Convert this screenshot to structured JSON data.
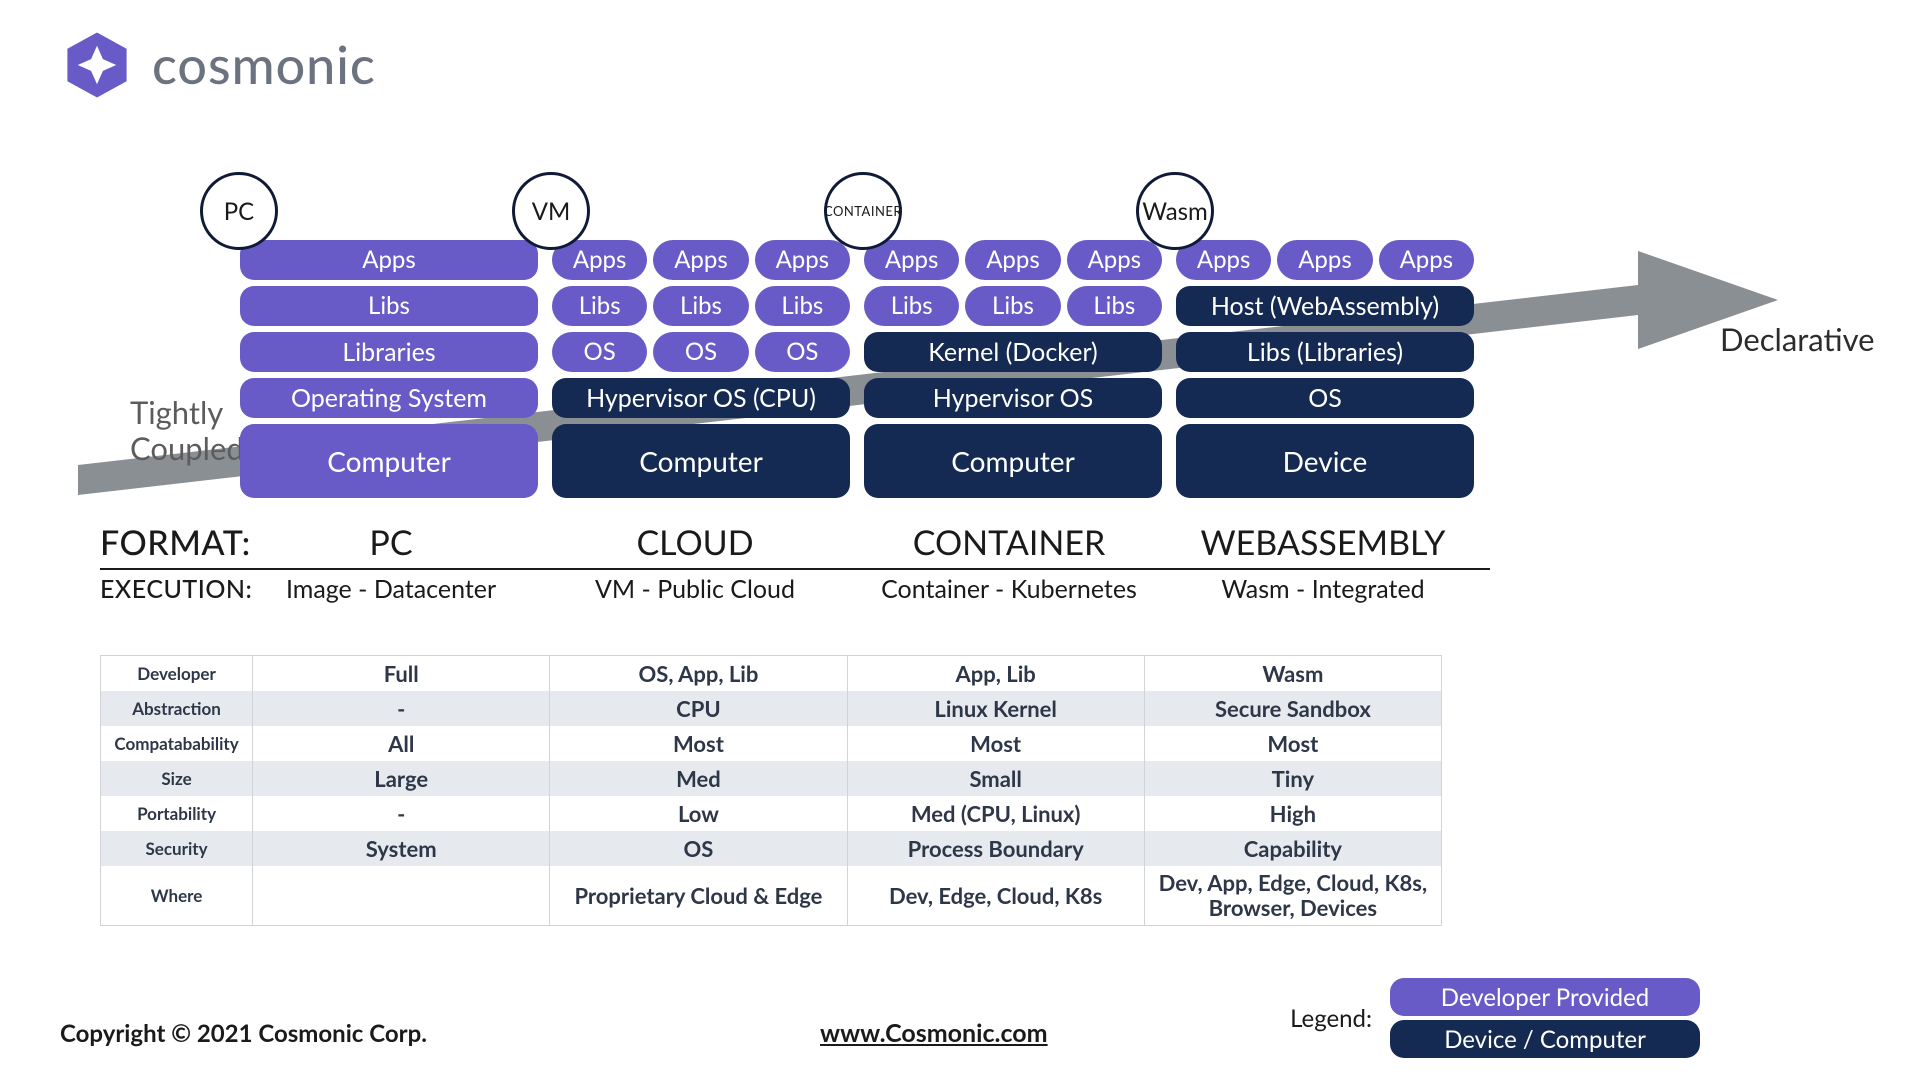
{
  "brand": {
    "name": "cosmonic",
    "mark_color": "#685bc7"
  },
  "colors": {
    "dev": "#685bc7",
    "device": "#152a52",
    "arrow": "#8a8f94",
    "table_alt": "#e6eaee",
    "text_muted": "#5c5c5c"
  },
  "arrow": {
    "left_label_line1": "Tightly",
    "left_label_line2": "Coupled",
    "right_label": "Declarative"
  },
  "stacks": [
    {
      "badge": "PC",
      "badge_small": false,
      "rows": [
        {
          "type": "pill-wide",
          "labels": [
            "Apps"
          ],
          "style": "dev"
        },
        {
          "type": "pill-wide",
          "labels": [
            "Libs"
          ],
          "style": "dev"
        },
        {
          "type": "block40",
          "labels": [
            "Libraries"
          ],
          "style": "dev"
        },
        {
          "type": "block40",
          "labels": [
            "Operating System"
          ],
          "style": "dev"
        },
        {
          "type": "block70",
          "labels": [
            "Computer"
          ],
          "style": "dev"
        }
      ],
      "format": "PC",
      "execution": "Image - Datacenter"
    },
    {
      "badge": "VM",
      "badge_small": false,
      "rows": [
        {
          "type": "pill3",
          "labels": [
            "Apps",
            "Apps",
            "Apps"
          ],
          "style": "dev"
        },
        {
          "type": "pill3",
          "labels": [
            "Libs",
            "Libs",
            "Libs"
          ],
          "style": "dev"
        },
        {
          "type": "pill3",
          "labels": [
            "OS",
            "OS",
            "OS"
          ],
          "style": "dev"
        },
        {
          "type": "block40",
          "labels": [
            "Hypervisor OS (CPU)"
          ],
          "style": "device"
        },
        {
          "type": "block70",
          "labels": [
            "Computer"
          ],
          "style": "device"
        }
      ],
      "format": "CLOUD",
      "execution": "VM - Public Cloud"
    },
    {
      "badge": "CONTAINER",
      "badge_small": true,
      "rows": [
        {
          "type": "pill3",
          "labels": [
            "Apps",
            "Apps",
            "Apps"
          ],
          "style": "dev"
        },
        {
          "type": "pill3",
          "labels": [
            "Libs",
            "Libs",
            "Libs"
          ],
          "style": "dev"
        },
        {
          "type": "block40",
          "labels": [
            "Kernel (Docker)"
          ],
          "style": "device"
        },
        {
          "type": "block40",
          "labels": [
            "Hypervisor OS"
          ],
          "style": "device"
        },
        {
          "type": "block70",
          "labels": [
            "Computer"
          ],
          "style": "device"
        }
      ],
      "format": "CONTAINER",
      "execution": "Container - Kubernetes"
    },
    {
      "badge": "Wasm",
      "badge_small": false,
      "rows": [
        {
          "type": "pill3",
          "labels": [
            "Apps",
            "Apps",
            "Apps"
          ],
          "style": "dev"
        },
        {
          "type": "block40",
          "labels": [
            "Host (WebAssembly)"
          ],
          "style": "device"
        },
        {
          "type": "block40",
          "labels": [
            "Libs (Libraries)"
          ],
          "style": "device"
        },
        {
          "type": "block40",
          "labels": [
            "OS"
          ],
          "style": "device"
        },
        {
          "type": "block70",
          "labels": [
            "Device"
          ],
          "style": "device"
        }
      ],
      "format": "WEBASSEMBLY",
      "execution": "Wasm - Integrated"
    }
  ],
  "format_label": "FORMAT:",
  "execution_label": "EXECUTION:",
  "table": {
    "row_labels": [
      "Developer",
      "Abstraction",
      "Compatabability",
      "Size",
      "Portability",
      "Security",
      "Where"
    ],
    "cells": [
      [
        "Full",
        "OS, App, Lib",
        "App, Lib",
        "Wasm"
      ],
      [
        "-",
        "CPU",
        "Linux Kernel",
        "Secure Sandbox"
      ],
      [
        "All",
        "Most",
        "Most",
        "Most"
      ],
      [
        "Large",
        "Med",
        "Small",
        "Tiny"
      ],
      [
        "-",
        "Low",
        "Med (CPU, Linux)",
        "High"
      ],
      [
        "System",
        "OS",
        "Process Boundary",
        "Capability"
      ],
      [
        "",
        "Proprietary Cloud & Edge",
        "Dev, Edge, Cloud, K8s",
        "Dev, App, Edge, Cloud, K8s, Browser, Devices"
      ]
    ],
    "alt_rows": [
      1,
      3,
      5
    ]
  },
  "legend": {
    "label": "Legend:",
    "items": [
      {
        "text": "Developer Provided",
        "style": "dev"
      },
      {
        "text": "Device / Computer",
        "style": "device"
      }
    ]
  },
  "footer": {
    "copyright": "Copyright © 2021 Cosmonic Corp.",
    "url": "www.Cosmonic.com"
  }
}
